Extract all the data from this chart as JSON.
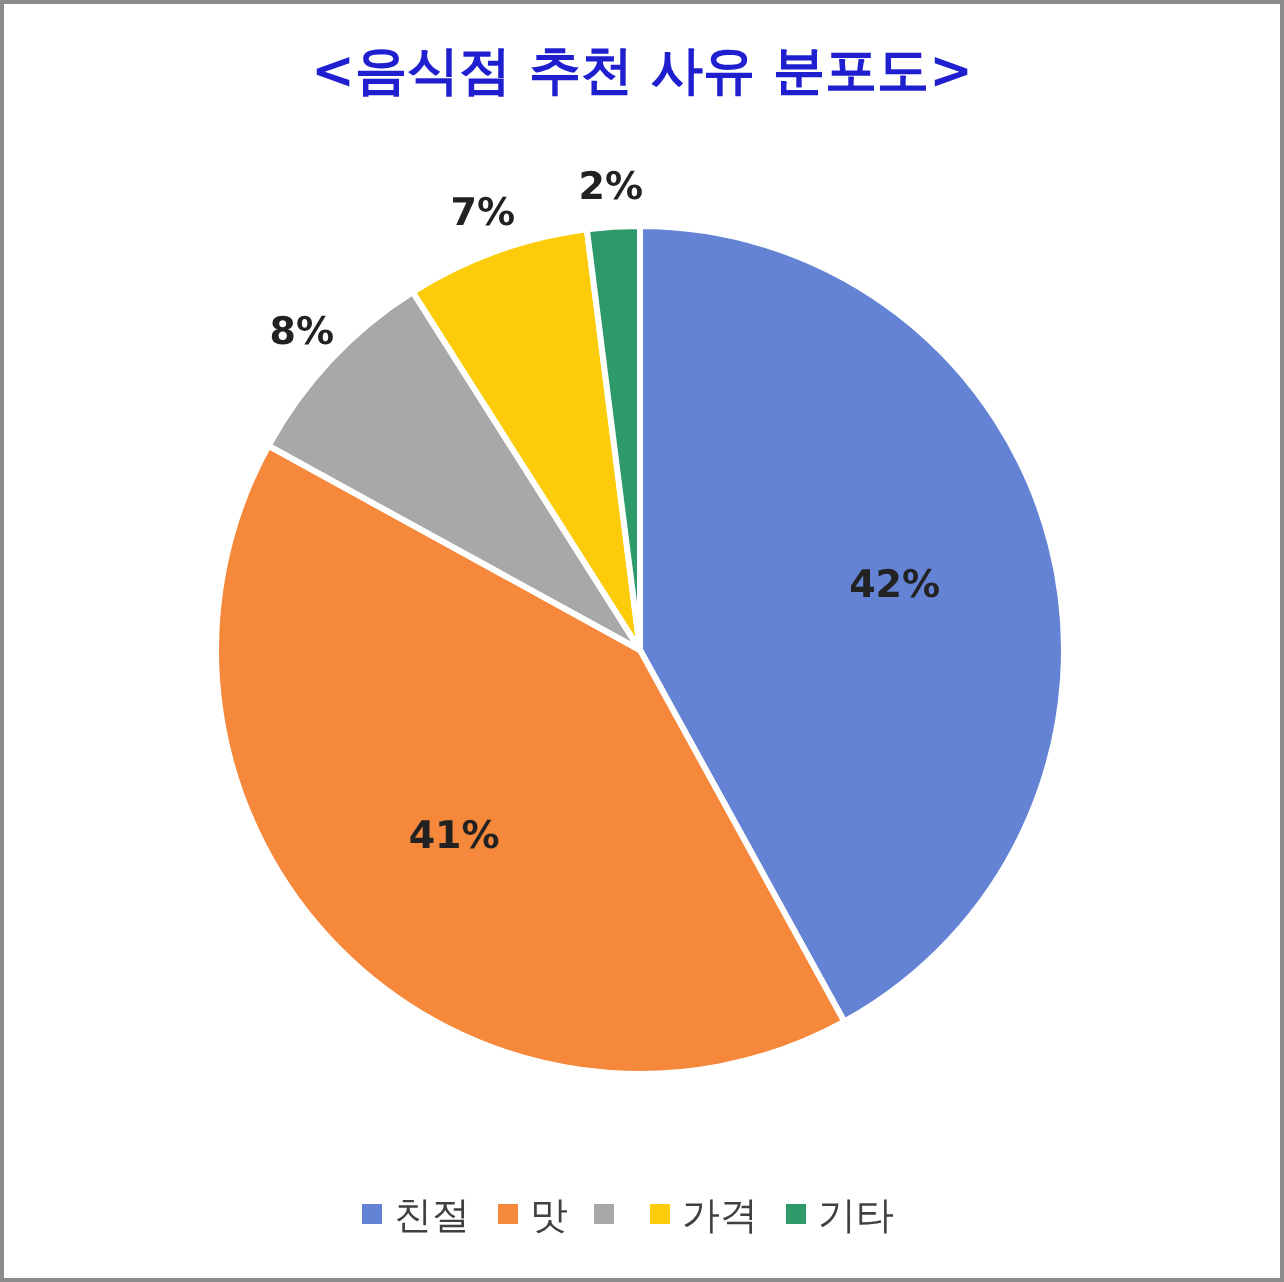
{
  "chart_data": {
    "type": "pie",
    "title": "<음식점 추천 사유 분포도>",
    "categories": [
      "친절",
      "맛",
      null,
      "가격",
      "기타"
    ],
    "values": [
      42,
      41,
      8,
      7,
      2
    ],
    "colors": [
      "#6483d4",
      "#f5883a",
      "#a8a8a8",
      "#fccc0a",
      "#2e9a6c"
    ],
    "value_labels": [
      "42%",
      "41%",
      "8%",
      "7%",
      "2%"
    ],
    "legend": "bottom"
  }
}
